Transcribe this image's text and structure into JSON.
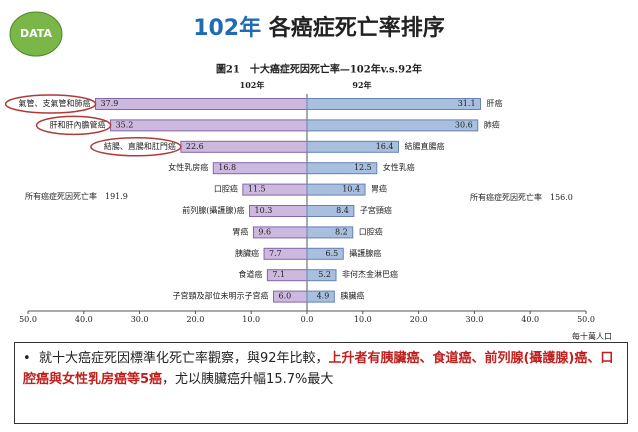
{
  "slide_title": {
    "year": "102年",
    "text": "各癌症死亡率排序"
  },
  "logo": "DATA",
  "chart_data": {
    "type": "butterfly",
    "title": "圖21　十大癌症死因死亡率—102年v.s.92年",
    "unit": "每十萬人口",
    "xlim": [
      0,
      50
    ],
    "xticks": [
      {
        "value": 50,
        "label": "50.0"
      },
      {
        "value": 40,
        "label": "40.0"
      },
      {
        "value": 30,
        "label": "30.0"
      },
      {
        "value": 20,
        "label": "20.0"
      },
      {
        "value": 10,
        "label": "10.0"
      },
      {
        "value": 0,
        "label": "0.0"
      },
      {
        "value": 10,
        "label": "10.0"
      },
      {
        "value": 20,
        "label": "20.0"
      },
      {
        "value": 30,
        "label": "30.0"
      },
      {
        "value": 40,
        "label": "40.0"
      },
      {
        "value": 50,
        "label": "50.0"
      }
    ],
    "series": [
      {
        "name": "102年",
        "side": "left",
        "color": "#cdb9df",
        "stroke": "#8466a6",
        "categories": [
          "氣管、支氣管和肺癌",
          "肝和肝內膽管癌",
          "結腸、直腸和肛門癌",
          "女性乳房癌",
          "口腔癌",
          "前列腺(攝護腺)癌",
          "胃癌",
          "胰臟癌",
          "食道癌",
          "子宮頸及部位未明示子宮癌"
        ],
        "values": [
          37.9,
          35.2,
          22.6,
          16.8,
          11.5,
          10.3,
          9.6,
          7.7,
          7.1,
          6.0
        ],
        "value_labels": [
          "37.9",
          "35.2",
          "22.6",
          "16.8",
          "11.5",
          "10.3",
          "9.6",
          "7.7",
          "7.1",
          "6.0"
        ]
      },
      {
        "name": "92年",
        "side": "right",
        "color": "#a8bfe0",
        "stroke": "#6683b3",
        "categories": [
          "肝癌",
          "肺癌",
          "結腸直腸癌",
          "女性乳癌",
          "胃癌",
          "子宮頸癌",
          "口腔癌",
          "攝護腺癌",
          "非何杰金淋巴癌",
          "胰臟癌"
        ],
        "values": [
          31.1,
          30.6,
          16.4,
          12.5,
          10.4,
          8.4,
          8.2,
          6.5,
          5.2,
          4.9
        ],
        "value_labels": [
          "31.1",
          "30.6",
          "16.4",
          "12.5",
          "10.4",
          "8.4",
          "8.2",
          "6.5",
          "5.2",
          "4.9"
        ]
      }
    ],
    "annotations": [
      "所有癌症死因死亡率　191.9",
      "所有癌症死因死亡率　156.0"
    ]
  },
  "bullet": {
    "segments": [
      {
        "text": "就十大癌症死因標準化死亡率觀察，與92年比較，",
        "emphasis": false
      },
      {
        "text": "上升者有胰臟癌、食道癌、前列腺(攝護腺)癌、口腔癌與女性乳房癌等5癌",
        "emphasis": true
      },
      {
        "text": "，尤以胰臟癌升幅15.7%最大",
        "emphasis": false
      }
    ]
  }
}
